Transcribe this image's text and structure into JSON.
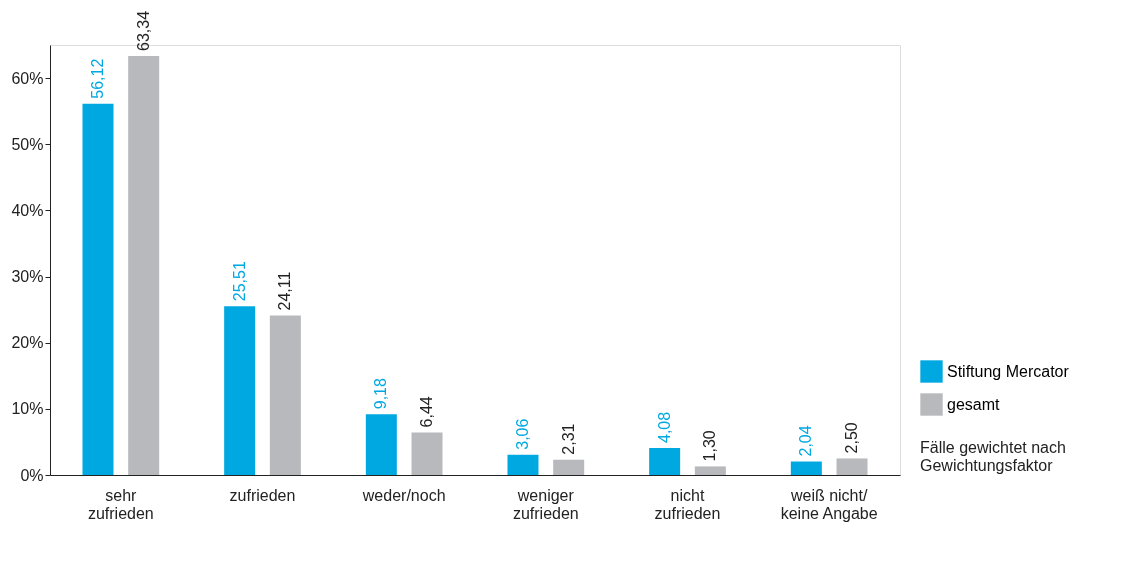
{
  "chart_data": {
    "type": "bar",
    "categories": [
      "sehr\nzufrieden",
      "zufrieden",
      "weder/noch",
      "weniger\nzufrieden",
      "nicht\nzufrieden",
      "weiß nicht/\nkeine Angabe"
    ],
    "series": [
      {
        "name": "Stiftung Mercator",
        "color": "#00a8e1",
        "values": [
          56.12,
          25.51,
          9.18,
          3.06,
          4.08,
          2.04
        ],
        "value_labels": [
          "56,12",
          "25,51",
          "9,18",
          "3,06",
          "4,08",
          "2,04"
        ]
      },
      {
        "name": "gesamt",
        "color": "#b8b9bc",
        "values": [
          63.34,
          24.11,
          6.44,
          2.31,
          1.3,
          2.5
        ],
        "value_labels": [
          "63,34",
          "24,11",
          "6,44",
          "2,31",
          "1,30",
          "2,50"
        ]
      }
    ],
    "ylim": [
      0,
      65
    ],
    "yticks": [
      {
        "value": 0,
        "label": "0%"
      },
      {
        "value": 10,
        "label": "10%"
      },
      {
        "value": 20,
        "label": "20%"
      },
      {
        "value": 30,
        "label": "30%"
      },
      {
        "value": 40,
        "label": "40%"
      },
      {
        "value": 50,
        "label": "50%"
      },
      {
        "value": 60,
        "label": "60%"
      }
    ],
    "grid": false,
    "legend": "right",
    "annotations": [
      "Fälle gewichtet nach\nGewichtungsfaktor"
    ]
  }
}
